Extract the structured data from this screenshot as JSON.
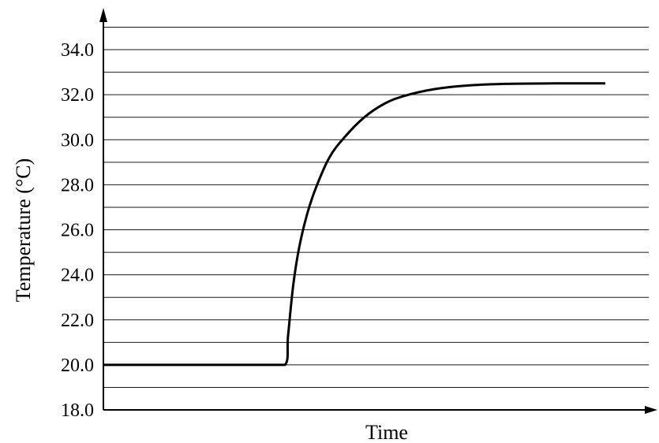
{
  "chart_data": {
    "type": "line",
    "title": "",
    "xlabel": "Time",
    "ylabel": "Temperature (°C)",
    "ylim": [
      18.0,
      34.0
    ],
    "yticks": [
      "18.0",
      "20.0",
      "22.0",
      "24.0",
      "26.0",
      "28.0",
      "30.0",
      "32.0",
      "34.0"
    ],
    "xticks": [],
    "grid": "horizontal, every 1.0 °C, extending beyond 34.0",
    "series": [
      {
        "color": "#000000",
        "x": [
          0,
          4,
          8,
          12,
          16,
          18.1,
          18.4,
          18.9,
          19.5,
          20.3,
          21.2,
          22.5,
          24,
          26,
          28,
          30,
          33,
          36,
          40,
          45,
          50
        ],
        "y": [
          20.0,
          20.0,
          20.0,
          20.0,
          20.0,
          20.0,
          21.3,
          23.5,
          25.2,
          26.7,
          27.9,
          29.2,
          30.1,
          31.0,
          31.6,
          31.95,
          32.25,
          32.4,
          32.48,
          32.5,
          32.5
        ]
      }
    ]
  }
}
